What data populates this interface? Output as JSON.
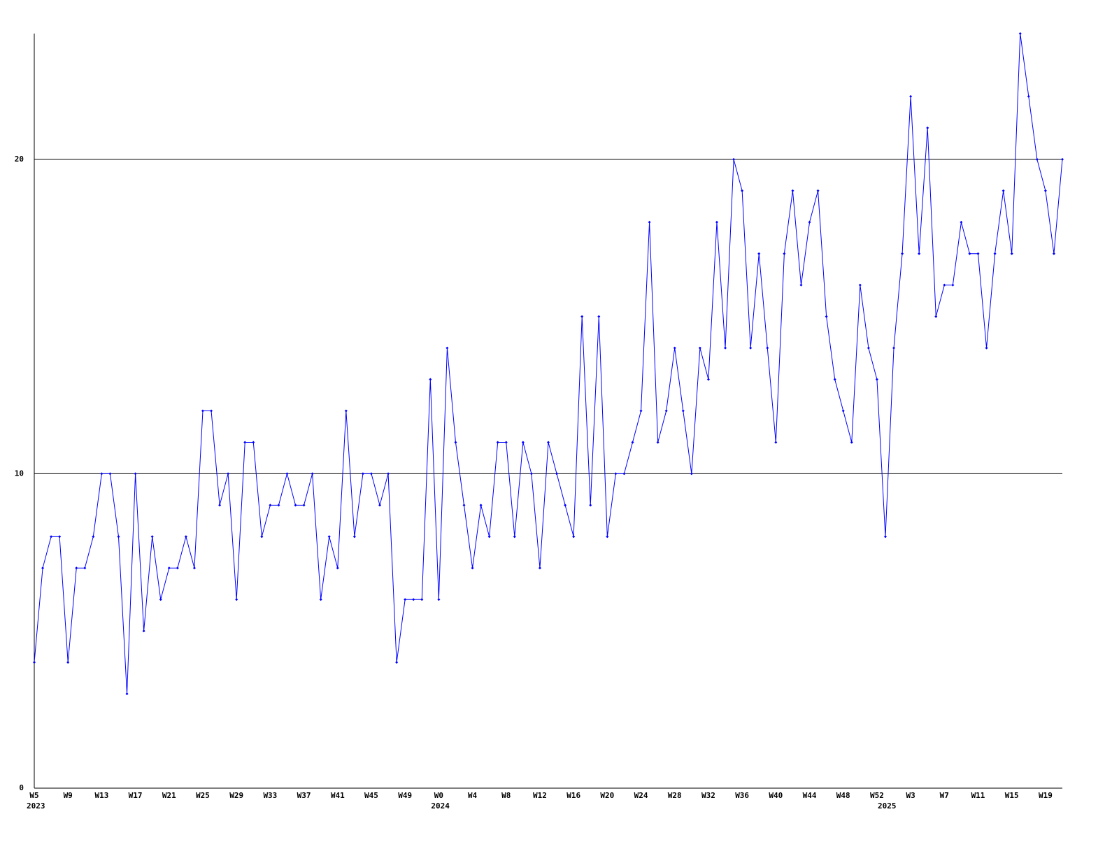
{
  "chart_data": {
    "type": "line",
    "categories": [
      "W5",
      null,
      null,
      null,
      "W9",
      null,
      null,
      null,
      "W13",
      null,
      null,
      null,
      "W17",
      null,
      null,
      null,
      "W21",
      null,
      null,
      null,
      "W25",
      null,
      null,
      null,
      "W29",
      null,
      null,
      null,
      "W33",
      null,
      null,
      null,
      "W37",
      null,
      null,
      null,
      "W41",
      null,
      null,
      null,
      "W45",
      null,
      null,
      null,
      "W49",
      null,
      null,
      null,
      "W0",
      null,
      null,
      null,
      "W4",
      null,
      null,
      null,
      "W8",
      null,
      null,
      null,
      "W12",
      null,
      null,
      null,
      "W16",
      null,
      null,
      null,
      "W20",
      null,
      null,
      null,
      "W24",
      null,
      null,
      null,
      "W28",
      null,
      null,
      null,
      "W32",
      null,
      null,
      null,
      "W36",
      null,
      null,
      null,
      "W40",
      null,
      null,
      null,
      "W44",
      null,
      null,
      null,
      "W48",
      null,
      null,
      null,
      "W52",
      null,
      null,
      null,
      "W3",
      null,
      null,
      null,
      "W7",
      null,
      null,
      null,
      "W11",
      null,
      null,
      null,
      "W15",
      null,
      null,
      null,
      "W19",
      null,
      null
    ],
    "year_labels": [
      "2023",
      null,
      null,
      null,
      null,
      null,
      null,
      null,
      null,
      null,
      null,
      null,
      null,
      null,
      null,
      null,
      null,
      null,
      null,
      null,
      null,
      null,
      null,
      null,
      null,
      null,
      null,
      null,
      null,
      null,
      null,
      null,
      null,
      null,
      null,
      null,
      null,
      null,
      null,
      null,
      null,
      null,
      null,
      null,
      null,
      null,
      null,
      null,
      "2024",
      null,
      null,
      null,
      null,
      null,
      null,
      null,
      null,
      null,
      null,
      null,
      null,
      null,
      null,
      null,
      null,
      null,
      null,
      null,
      null,
      null,
      null,
      null,
      null,
      null,
      null,
      null,
      null,
      null,
      null,
      null,
      null,
      null,
      null,
      null,
      null,
      null,
      null,
      null,
      null,
      null,
      null,
      null,
      null,
      null,
      null,
      null,
      null,
      null,
      null,
      null,
      null,
      "2025",
      null,
      null,
      null,
      null,
      null,
      null,
      null,
      null,
      null,
      null,
      null,
      null,
      null,
      null,
      null,
      null,
      null,
      null,
      null,
      null,
      null
    ],
    "series": [
      {
        "color": "#0000ff",
        "values": [
          4,
          7,
          8,
          8,
          4,
          7,
          7,
          8,
          10,
          10,
          8,
          3,
          10,
          5,
          8,
          6,
          7,
          7,
          8,
          7,
          12,
          12,
          9,
          10,
          6,
          11,
          11,
          8,
          9,
          9,
          10,
          9,
          9,
          10,
          6,
          8,
          7,
          12,
          8,
          10,
          10,
          9,
          10,
          4,
          6,
          6,
          6,
          13,
          6,
          14,
          11,
          9,
          7,
          9,
          8,
          11,
          11,
          8,
          11,
          10,
          7,
          11,
          10,
          9,
          8,
          15,
          9,
          15,
          8,
          10,
          10,
          11,
          12,
          18,
          11,
          12,
          14,
          12,
          10,
          14,
          13,
          18,
          14,
          20,
          19,
          14,
          17,
          14,
          11,
          17,
          19,
          16,
          18,
          19,
          15,
          13,
          12,
          11,
          16,
          14,
          13,
          8,
          14,
          17,
          22,
          17,
          21,
          15,
          16,
          16,
          18,
          17,
          17,
          14,
          17,
          19,
          17,
          24,
          22,
          20,
          19,
          17,
          20
        ]
      }
    ],
    "ylim": [
      0,
      24
    ],
    "yticks": [
      0,
      10,
      20
    ],
    "grid": true
  }
}
